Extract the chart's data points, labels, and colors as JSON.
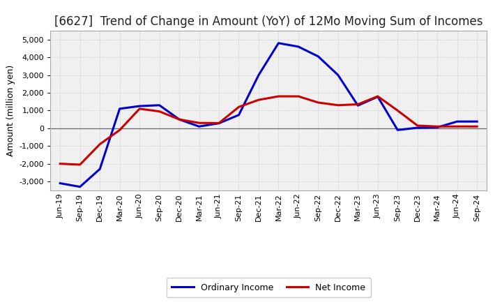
{
  "title": "[6627]  Trend of Change in Amount (YoY) of 12Mo Moving Sum of Incomes",
  "ylabel": "Amount (million yen)",
  "background_color": "#ffffff",
  "plot_bg_color": "#f0f0f0",
  "grid_color": "#bbbbbb",
  "ylim": [
    -3500,
    5500
  ],
  "yticks": [
    -3000,
    -2000,
    -1000,
    0,
    1000,
    2000,
    3000,
    4000,
    5000
  ],
  "xtick_labels": [
    "Jun-19",
    "Sep-19",
    "Dec-19",
    "Mar-20",
    "Jun-20",
    "Sep-20",
    "Dec-20",
    "Mar-21",
    "Jun-21",
    "Sep-21",
    "Dec-21",
    "Mar-22",
    "Jun-22",
    "Sep-22",
    "Dec-22",
    "Mar-23",
    "Jun-23",
    "Sep-23",
    "Dec-23",
    "Mar-24",
    "Jun-24",
    "Sep-24"
  ],
  "ordinary_income": [
    -3100,
    -3300,
    -2300,
    1100,
    1250,
    1300,
    500,
    100,
    280,
    750,
    3000,
    4800,
    4600,
    4050,
    3000,
    1280,
    1780,
    -100,
    30,
    50,
    380,
    380
  ],
  "net_income": [
    -2000,
    -2050,
    -900,
    -100,
    1100,
    950,
    500,
    300,
    290,
    1200,
    1600,
    1800,
    1800,
    1450,
    1300,
    1350,
    1800,
    1000,
    150,
    100,
    100,
    100
  ],
  "ordinary_income_color": "#0000cc",
  "net_income_color": "#cc0000",
  "line_width": 2.2,
  "legend_ordinary": "Ordinary Income",
  "legend_net": "Net Income",
  "title_fontsize": 12,
  "axis_fontsize": 9,
  "tick_fontsize": 8
}
